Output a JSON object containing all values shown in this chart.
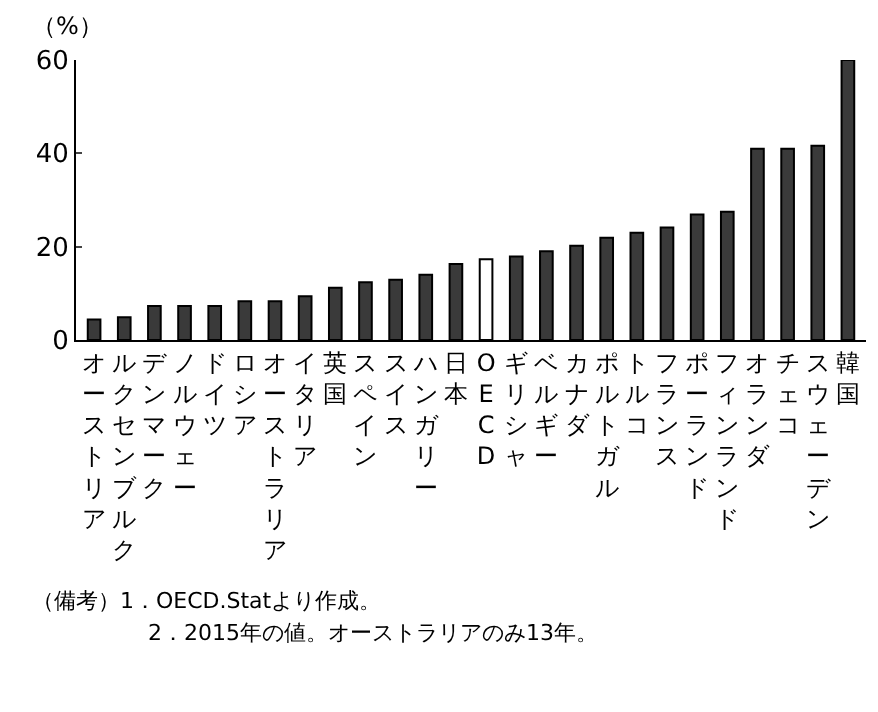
{
  "chart_data": {
    "type": "bar",
    "ylabel": "（%）",
    "categories": [
      "オーストリア",
      "ルクセンブルク",
      "デンマーク",
      "ノルウェー",
      "ドイツ",
      "ロシア",
      "オーストラリア",
      "イタリア",
      "英国",
      "スペイン",
      "スイス",
      "ハンガリー",
      "日本",
      "OECD",
      "ギリシャ",
      "ベルギー",
      "カナダ",
      "ポルトガル",
      "トルコ",
      "フランス",
      "ポーランド",
      "フィンランド",
      "オランダ",
      "チェコ",
      "スウェーデン",
      "韓国"
    ],
    "values": [
      4.4,
      4.9,
      7.3,
      7.3,
      7.3,
      8.3,
      8.3,
      9.4,
      11.2,
      12.4,
      12.9,
      14.0,
      16.3,
      17.3,
      17.9,
      19.0,
      20.2,
      21.9,
      23.0,
      24.1,
      26.9,
      27.5,
      41.0,
      41.0,
      41.6,
      60.0
    ],
    "colors": [
      "#3a3a3a",
      "#3a3a3a",
      "#3a3a3a",
      "#3a3a3a",
      "#3a3a3a",
      "#3a3a3a",
      "#3a3a3a",
      "#3a3a3a",
      "#3a3a3a",
      "#3a3a3a",
      "#3a3a3a",
      "#3a3a3a",
      "#3a3a3a",
      "#ffffff",
      "#3a3a3a",
      "#3a3a3a",
      "#3a3a3a",
      "#3a3a3a",
      "#3a3a3a",
      "#3a3a3a",
      "#3a3a3a",
      "#3a3a3a",
      "#3a3a3a",
      "#3a3a3a",
      "#3a3a3a",
      "#3a3a3a"
    ],
    "ylim": [
      0,
      60
    ],
    "yticks": [
      0,
      20,
      40,
      60
    ],
    "annotations": [
      "（備考）1．OECD.Statより作成。",
      "2．2015年の値。オーストラリアのみ13年。"
    ]
  }
}
